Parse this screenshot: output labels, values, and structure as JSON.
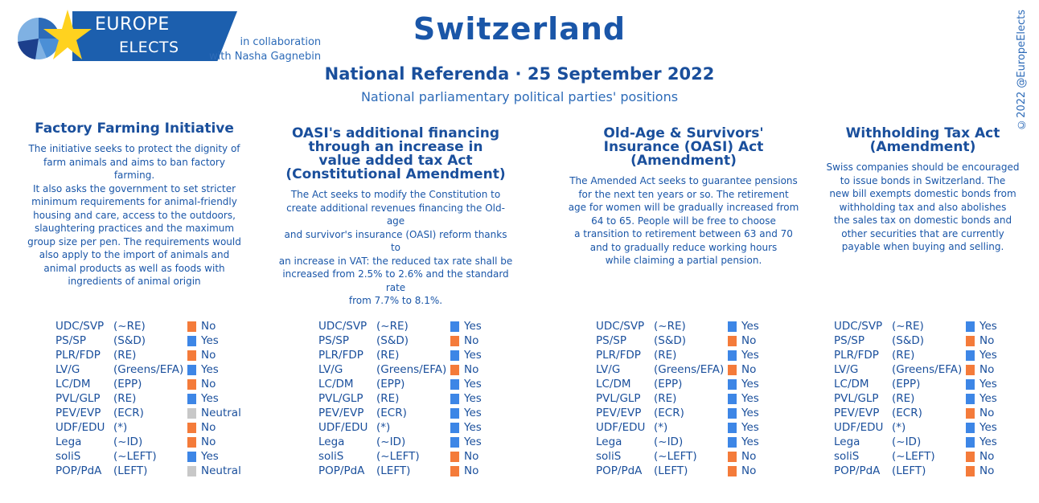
{
  "colors": {
    "yes": "#3d86e6",
    "no": "#f47b3a",
    "neutral": "#c8c8c8",
    "text": "#1a56a8"
  },
  "header": {
    "logo_line1": "EUROPE",
    "logo_line2": "ELECTS",
    "collab_line1": "in collaboration",
    "collab_line2": "with Nasha Gagnebin",
    "title": "Switzerland",
    "subtitle": "National Referenda · 25 September 2022",
    "caption": "National parliamentary political parties' positions",
    "credit": "©2022 @EuropeElects"
  },
  "parties": [
    {
      "party": "UDC/SVP",
      "group": "(~RE)"
    },
    {
      "party": "PS/SP",
      "group": "(S&D)"
    },
    {
      "party": "PLR/FDP",
      "group": "(RE)"
    },
    {
      "party": "LV/G",
      "group": "(Greens/EFA)"
    },
    {
      "party": "LC/DM",
      "group": "(EPP)"
    },
    {
      "party": "PVL/GLP",
      "group": "(RE)"
    },
    {
      "party": "PEV/EVP",
      "group": "(ECR)"
    },
    {
      "party": "UDF/EDU",
      "group": "(*)"
    },
    {
      "party": "Lega",
      "group": "(~ID)"
    },
    {
      "party": "soliS",
      "group": "(~LEFT)"
    },
    {
      "party": "POP/PdA",
      "group": "(LEFT)"
    }
  ],
  "referenda": [
    {
      "title_lines": [
        "Factory Farming Initiative"
      ],
      "desc_lines": [
        "The initiative seeks to protect the dignity of",
        "farm animals and aims to ban factory farming.",
        "It also asks the government to set stricter",
        "minimum requirements for animal-friendly",
        "housing and care, access to the outdoors,",
        "slaughtering practices and the maximum",
        "group size per pen. The requirements would",
        "also apply to the import of animals and",
        "animal products as well as foods with",
        "ingredients of animal origin"
      ],
      "positions": [
        "No",
        "Yes",
        "No",
        "Yes",
        "No",
        "Yes",
        "Neutral",
        "No",
        "No",
        "Yes",
        "Neutral"
      ]
    },
    {
      "title_lines": [
        "OASI's additional financing",
        "through an increase in",
        "value added tax Act",
        "(Constitutional Amendment)"
      ],
      "desc_lines": [
        "The Act seeks to modify the Constitution to",
        "create additional revenues financing the Old-age",
        "and survivor's insurance (OASI) reform thanks to",
        "an increase in VAT: the reduced tax rate shall be",
        "increased from 2.5% to 2.6% and the standard rate",
        "from 7.7% to 8.1%."
      ],
      "positions": [
        "Yes",
        "No",
        "Yes",
        "No",
        "Yes",
        "Yes",
        "Yes",
        "Yes",
        "Yes",
        "No",
        "No"
      ]
    },
    {
      "title_lines": [
        "Old-Age & Survivors'",
        "Insurance (OASI) Act",
        "(Amendment)"
      ],
      "desc_lines": [
        "The Amended Act seeks to guarantee pensions",
        "for the next ten years or so. The retirement",
        "age for women will be gradually increased from",
        "64 to 65. People will be free to choose",
        "a transition to retirement between 63 and 70",
        "and to gradually reduce working hours",
        "while claiming a partial pension."
      ],
      "positions": [
        "Yes",
        "No",
        "Yes",
        "No",
        "Yes",
        "Yes",
        "Yes",
        "Yes",
        "Yes",
        "No",
        "No"
      ]
    },
    {
      "title_lines": [
        "Withholding Tax Act",
        "(Amendment)"
      ],
      "desc_lines": [
        "Swiss companies should be encouraged",
        "to issue bonds in Switzerland. The",
        "new bill exempts domestic bonds from",
        "withholding tax and also abolishes",
        "the sales tax on domestic bonds and",
        "other securities that are currently",
        "payable when buying and selling."
      ],
      "positions": [
        "Yes",
        "No",
        "Yes",
        "No",
        "Yes",
        "Yes",
        "No",
        "Yes",
        "Yes",
        "No",
        "No"
      ]
    }
  ]
}
